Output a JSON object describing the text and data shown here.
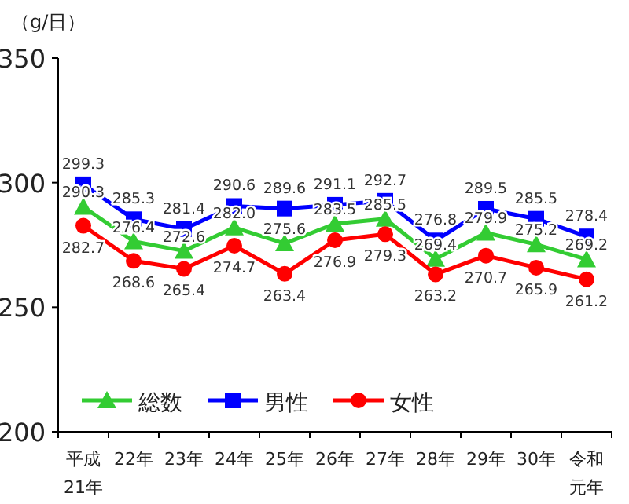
{
  "chart_data": {
    "type": "line",
    "ylabel": "（g/日）",
    "categories": [
      "平成21年",
      "22年",
      "23年",
      "24年",
      "25年",
      "26年",
      "27年",
      "28年",
      "29年",
      "30年",
      "令和元年"
    ],
    "ylim": [
      200,
      350
    ],
    "yticks": [
      200,
      250,
      300,
      350
    ],
    "data_labels": true,
    "legend": "bottom",
    "grid": false,
    "series": [
      {
        "name": "総数",
        "color": "#33cc33",
        "marker": "triangle",
        "values": [
          290.3,
          276.4,
          272.6,
          282.0,
          275.6,
          283.5,
          285.5,
          269.4,
          279.9,
          275.2,
          269.2
        ],
        "value_labels": [
          "290.3",
          "276.4",
          "272.6",
          "282.0",
          "275.6",
          "283.5",
          "285.5",
          "269.4",
          "279.9",
          "275.2",
          "269.2"
        ]
      },
      {
        "name": "男性",
        "color": "#0000ff",
        "marker": "square",
        "values": [
          299.3,
          285.3,
          281.4,
          290.6,
          289.6,
          291.1,
          292.7,
          276.8,
          289.5,
          285.5,
          278.4
        ]
      },
      {
        "name": "女性",
        "color": "#ff0000",
        "marker": "circle",
        "values": [
          282.7,
          268.6,
          265.4,
          274.7,
          263.4,
          276.9,
          279.3,
          263.2,
          270.7,
          265.9,
          261.2
        ]
      }
    ]
  }
}
